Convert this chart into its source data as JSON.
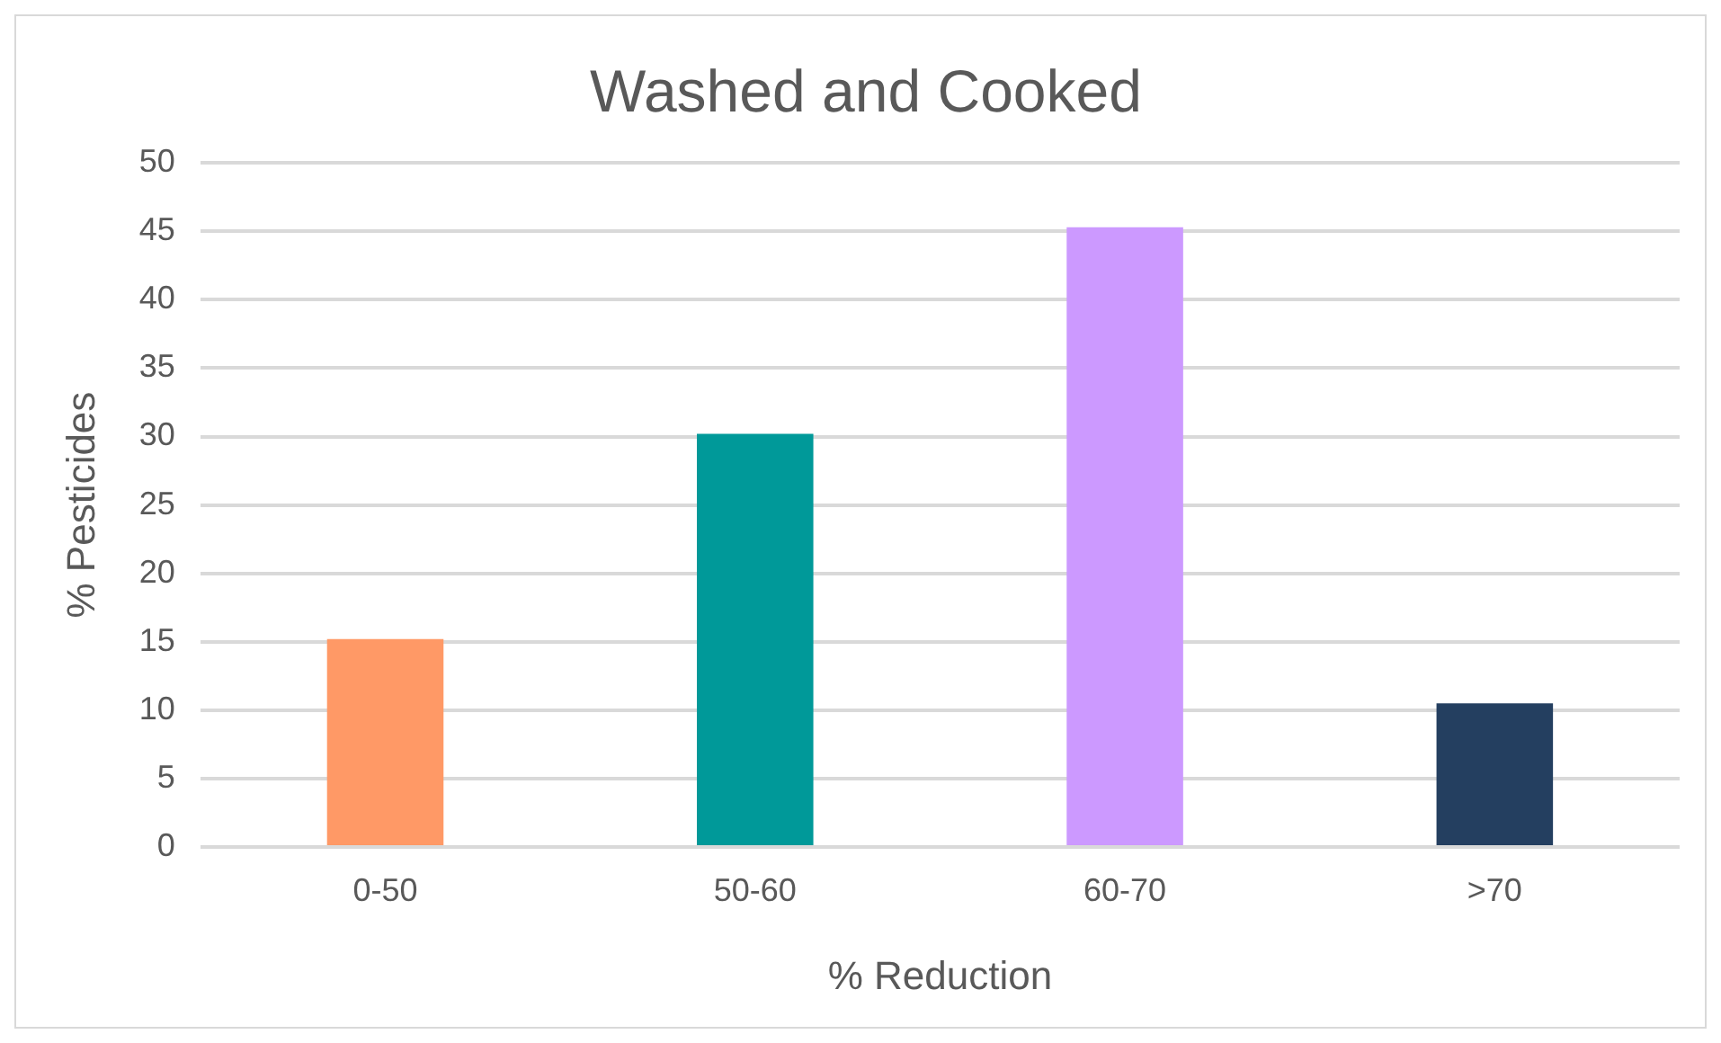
{
  "chart_data": {
    "type": "bar",
    "title": "Washed and Cooked",
    "xlabel": "% Reduction",
    "ylabel": "% Pesticides",
    "categories": [
      "0-50",
      "50-60",
      "60-70",
      ">70"
    ],
    "values": [
      15.2,
      30.2,
      45.3,
      10.5
    ],
    "colors": [
      "#ff9966",
      "#009999",
      "#cc99ff",
      "#243f60"
    ],
    "ylim": [
      0,
      50
    ],
    "yticks": [
      0,
      5,
      10,
      15,
      20,
      25,
      30,
      35,
      40,
      45,
      50
    ],
    "grid": "y",
    "legend": false
  }
}
